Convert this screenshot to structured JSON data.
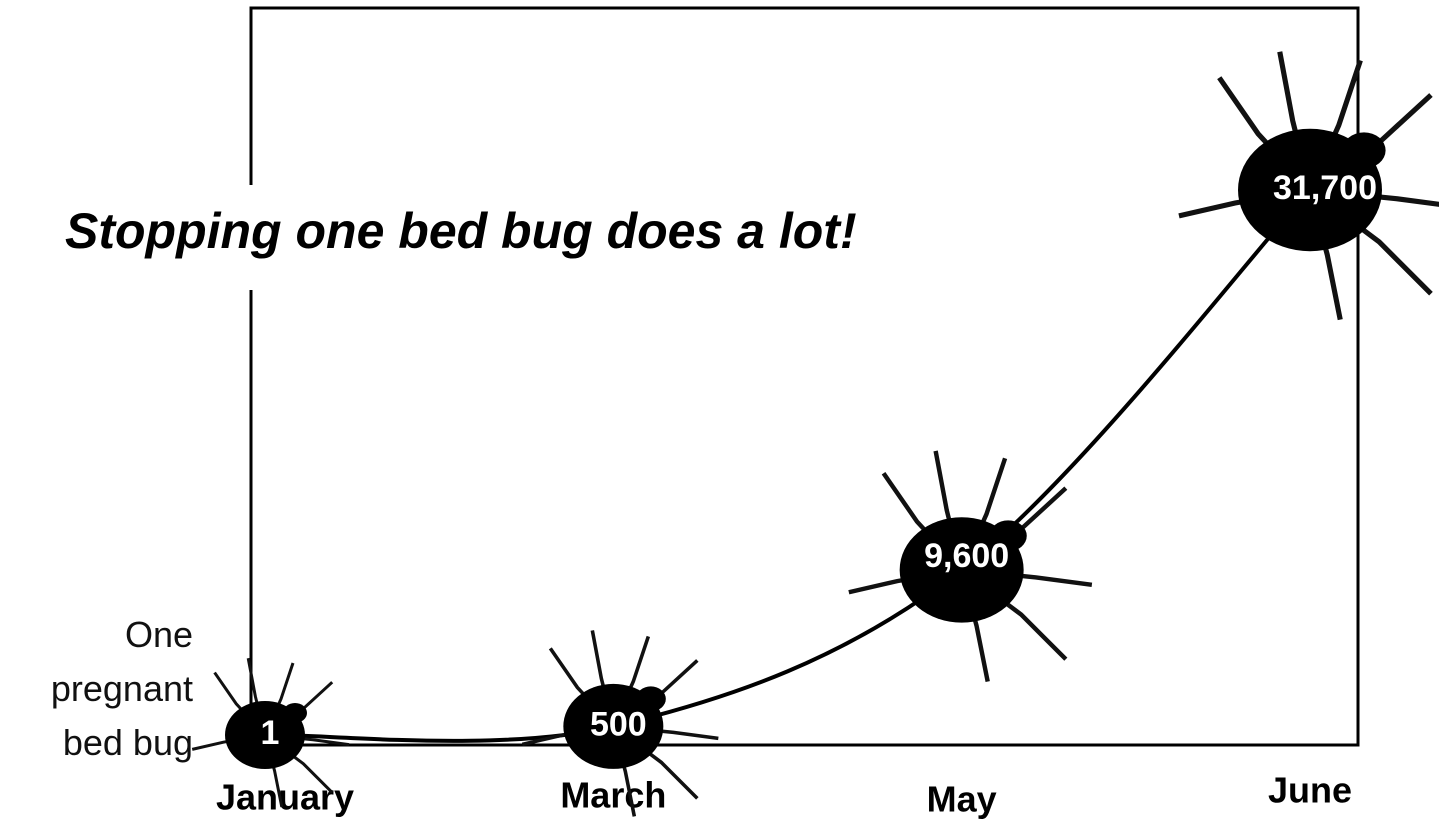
{
  "chart_data": {
    "type": "line",
    "title": "Stopping one bed bug does a lot!",
    "annotation": "One pregnant bed bug",
    "categories": [
      "January",
      "March",
      "May",
      "June"
    ],
    "values": [
      1,
      500,
      9600,
      31700
    ],
    "value_labels": [
      "1",
      "500",
      "9,600",
      "31,700"
    ],
    "color": "#000000"
  }
}
